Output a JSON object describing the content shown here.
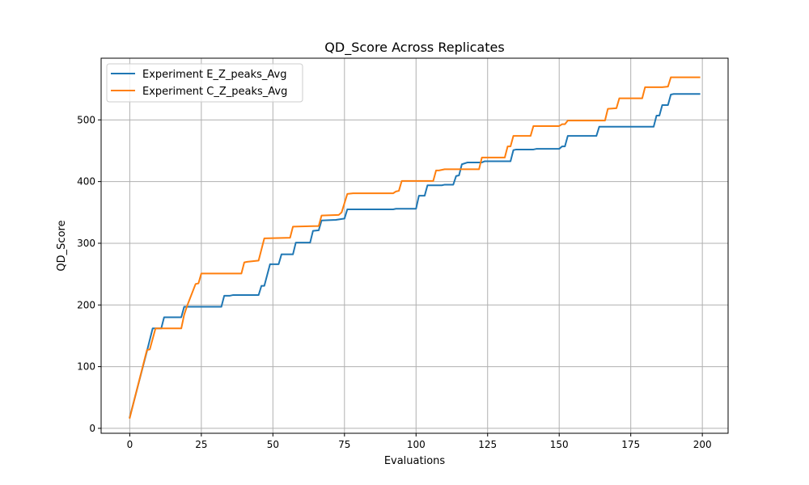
{
  "chart_data": {
    "type": "line",
    "title": "QD_Score Across Replicates",
    "xlabel": "Evaluations",
    "ylabel": "QD_Score",
    "xlim": [
      -10,
      209
    ],
    "ylim": [
      -8,
      600
    ],
    "xticks": [
      0,
      25,
      50,
      75,
      100,
      125,
      150,
      175,
      200
    ],
    "yticks": [
      0,
      100,
      200,
      300,
      400,
      500
    ],
    "grid": true,
    "legend_position": "top-left",
    "series": [
      {
        "name": "Experiment E_Z_peaks_Avg",
        "color": "#1f77b4",
        "points": [
          [
            0,
            18
          ],
          [
            6,
            125
          ],
          [
            8,
            162
          ],
          [
            11,
            162
          ],
          [
            12,
            180
          ],
          [
            18,
            180
          ],
          [
            19,
            197
          ],
          [
            32,
            197
          ],
          [
            33,
            215
          ],
          [
            35,
            215
          ],
          [
            36,
            216
          ],
          [
            45,
            216
          ],
          [
            46,
            231
          ],
          [
            47,
            231
          ],
          [
            49,
            266
          ],
          [
            52,
            266
          ],
          [
            53,
            282
          ],
          [
            57,
            282
          ],
          [
            58,
            301
          ],
          [
            63,
            301
          ],
          [
            64,
            320
          ],
          [
            66,
            321
          ],
          [
            67,
            337
          ],
          [
            72,
            338
          ],
          [
            75,
            340
          ],
          [
            76,
            355
          ],
          [
            92,
            355
          ],
          [
            93,
            356
          ],
          [
            100,
            356
          ],
          [
            101,
            377
          ],
          [
            103,
            377
          ],
          [
            104,
            394
          ],
          [
            109,
            394
          ],
          [
            110,
            395
          ],
          [
            113,
            395
          ],
          [
            114,
            409
          ],
          [
            115,
            410
          ],
          [
            116,
            428
          ],
          [
            118,
            431
          ],
          [
            123,
            431
          ],
          [
            124,
            433
          ],
          [
            133,
            433
          ],
          [
            134,
            451
          ],
          [
            135,
            452
          ],
          [
            141,
            452
          ],
          [
            142,
            453
          ],
          [
            150,
            453
          ],
          [
            151,
            457
          ],
          [
            152,
            457
          ],
          [
            153,
            474
          ],
          [
            163,
            474
          ],
          [
            164,
            489
          ],
          [
            183,
            489
          ],
          [
            184,
            507
          ],
          [
            185,
            507
          ],
          [
            186,
            524
          ],
          [
            188,
            524
          ],
          [
            189,
            541
          ],
          [
            190,
            542
          ],
          [
            199,
            542
          ]
        ]
      },
      {
        "name": "Experiment C_Z_peaks_Avg",
        "color": "#ff7f0e",
        "points": [
          [
            0,
            17
          ],
          [
            6,
            127
          ],
          [
            7,
            128
          ],
          [
            9,
            162
          ],
          [
            18,
            162
          ],
          [
            19,
            184
          ],
          [
            20,
            198
          ],
          [
            23,
            234
          ],
          [
            24,
            235
          ],
          [
            25,
            251
          ],
          [
            39,
            251
          ],
          [
            40,
            269
          ],
          [
            41,
            270
          ],
          [
            45,
            272
          ],
          [
            47,
            308
          ],
          [
            56,
            309
          ],
          [
            57,
            327
          ],
          [
            66,
            328
          ],
          [
            67,
            345
          ],
          [
            73,
            346
          ],
          [
            74,
            350
          ],
          [
            76,
            380
          ],
          [
            78,
            381
          ],
          [
            92,
            381
          ],
          [
            93,
            384
          ],
          [
            94,
            385
          ],
          [
            95,
            401
          ],
          [
            106,
            401
          ],
          [
            107,
            418
          ],
          [
            108,
            418
          ],
          [
            110,
            420
          ],
          [
            122,
            420
          ],
          [
            123,
            439
          ],
          [
            131,
            439
          ],
          [
            132,
            457
          ],
          [
            133,
            457
          ],
          [
            134,
            474
          ],
          [
            140,
            474
          ],
          [
            141,
            490
          ],
          [
            150,
            490
          ],
          [
            151,
            493
          ],
          [
            152,
            493
          ],
          [
            153,
            499
          ],
          [
            166,
            499
          ],
          [
            167,
            518
          ],
          [
            170,
            519
          ],
          [
            171,
            535
          ],
          [
            179,
            535
          ],
          [
            180,
            553
          ],
          [
            186,
            553
          ],
          [
            188,
            554
          ],
          [
            189,
            569
          ],
          [
            199,
            569
          ]
        ]
      }
    ]
  }
}
